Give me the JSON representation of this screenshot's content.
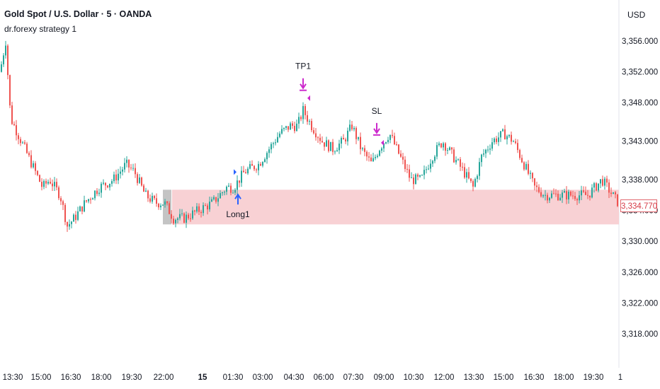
{
  "header": {
    "symbol_title": "Gold Spot / U.S. Dollar · 5 · OANDA",
    "strategy": "dr.forexy strategy 1",
    "currency": "USD"
  },
  "price_tag": "3,334.770",
  "colors": {
    "up": "#26a69a",
    "down": "#ef5350",
    "zone": "#f8d1d4",
    "marker": "#cc29cc",
    "entry": "#2962ff"
  },
  "chart_data": {
    "type": "candlestick",
    "title": "Gold Spot / U.S. Dollar · 5 · OANDA",
    "ylim": [
      3314.5,
      3359.5
    ],
    "y_ticks": [
      "3,356.000",
      "3,352.000",
      "3,348.000",
      "3,343.000",
      "3,338.000",
      "3,334.000",
      "3,330.000",
      "3,326.000",
      "3,322.000",
      "3,318.000"
    ],
    "y_tick_values": [
      3356,
      3352,
      3348,
      3343,
      3338,
      3334,
      3330,
      3326,
      3322,
      3318
    ],
    "x_ticks": [
      "13:30",
      "15:00",
      "16:30",
      "18:00",
      "19:30",
      "22:00",
      "15",
      "01:30",
      "03:00",
      "04:30",
      "06:00",
      "07:30",
      "09:00",
      "10:30",
      "12:00",
      "13:30",
      "15:00",
      "16:30",
      "18:00",
      "19:30",
      "1"
    ],
    "x_tick_bold": [
      false,
      false,
      false,
      false,
      false,
      false,
      true,
      false,
      false,
      false,
      false,
      false,
      false,
      false,
      false,
      false,
      false,
      false,
      false,
      false,
      false
    ],
    "price_path": [
      [
        0,
        3352
      ],
      [
        8,
        3356
      ],
      [
        15,
        3346
      ],
      [
        30,
        3343
      ],
      [
        45,
        3340
      ],
      [
        60,
        3337
      ],
      [
        70,
        3338
      ],
      [
        85,
        3336
      ],
      [
        95,
        3332
      ],
      [
        105,
        3333
      ],
      [
        120,
        3335
      ],
      [
        140,
        3337
      ],
      [
        160,
        3338
      ],
      [
        178,
        3340
      ],
      [
        190,
        3339
      ],
      [
        205,
        3336
      ],
      [
        220,
        3335
      ],
      [
        232,
        3335
      ],
      [
        245,
        3333
      ],
      [
        260,
        3333
      ],
      [
        280,
        3334
      ],
      [
        300,
        3335
      ],
      [
        320,
        3337
      ],
      [
        330,
        3337
      ],
      [
        345,
        3339
      ],
      [
        365,
        3340
      ],
      [
        380,
        3342
      ],
      [
        395,
        3344
      ],
      [
        410,
        3345
      ],
      [
        420,
        3345
      ],
      [
        428,
        3347
      ],
      [
        440,
        3345
      ],
      [
        455,
        3343
      ],
      [
        470,
        3342
      ],
      [
        485,
        3343
      ],
      [
        497,
        3345
      ],
      [
        510,
        3342
      ],
      [
        525,
        3340
      ],
      [
        535,
        3342
      ],
      [
        550,
        3344
      ],
      [
        565,
        3341
      ],
      [
        580,
        3338
      ],
      [
        595,
        3338
      ],
      [
        610,
        3341
      ],
      [
        625,
        3343
      ],
      [
        640,
        3341
      ],
      [
        655,
        3339
      ],
      [
        668,
        3337
      ],
      [
        680,
        3341
      ],
      [
        695,
        3343
      ],
      [
        712,
        3344
      ],
      [
        725,
        3343
      ],
      [
        740,
        3340
      ],
      [
        755,
        3337
      ],
      [
        770,
        3336
      ],
      [
        790,
        3336
      ],
      [
        810,
        3336
      ],
      [
        830,
        3336
      ],
      [
        850,
        3338
      ],
      [
        865,
        3336
      ],
      [
        873,
        3335
      ]
    ],
    "zone": {
      "x_from_label": "22:00",
      "x_to_label": "1",
      "y_top": 3336.7,
      "y_bottom": 3332.2
    },
    "annotations": [
      {
        "label": "TP1",
        "kind": "exit",
        "price": 3348.6
      },
      {
        "label": "SL",
        "kind": "exit",
        "price": 3342.8
      },
      {
        "label": "Long1",
        "kind": "entry",
        "price": 3334.6
      }
    ],
    "last_price": 3334.77
  }
}
